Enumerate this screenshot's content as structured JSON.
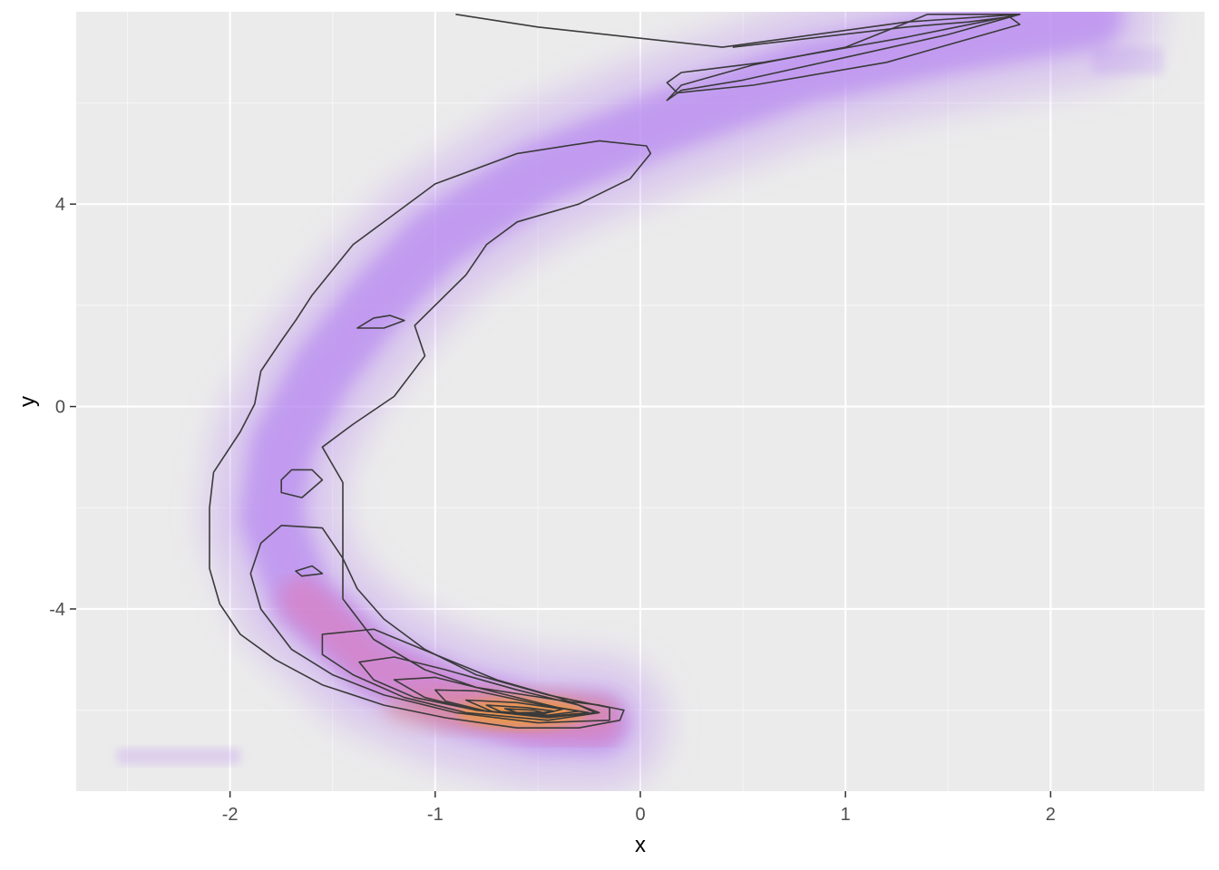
{
  "chart_data": {
    "type": "heatmap",
    "subtype": "2d-density-raster-with-contours",
    "title": "",
    "xlabel": "x",
    "ylabel": "y",
    "xlim": [
      -2.75,
      2.75
    ],
    "ylim": [
      -7.6,
      7.8
    ],
    "x_ticks": [
      -2,
      -1,
      0,
      1,
      2
    ],
    "x_tick_labels": [
      "-2",
      "-1",
      "0",
      "1",
      "2"
    ],
    "y_ticks": [
      -4,
      0,
      4
    ],
    "y_tick_labels": [
      "-4",
      "0",
      "4"
    ],
    "grid": true,
    "legend": "none",
    "colors": {
      "panel_background": "#EBEBEB",
      "grid_major": "#FFFFFF",
      "grid_minor": "#F5F5F5",
      "density_low": "#B98CF0",
      "density_mid": "#D87FC0",
      "density_high": "#F0A020",
      "contour": "#3A3A3A"
    },
    "density_ridge": {
      "description_units": "data",
      "centerline": [
        {
          "x": 2.2,
          "y": 7.7
        },
        {
          "x": 1.5,
          "y": 7.2
        },
        {
          "x": 0.8,
          "y": 6.6
        },
        {
          "x": 0.1,
          "y": 5.6
        },
        {
          "x": -0.5,
          "y": 4.6
        },
        {
          "x": -1.0,
          "y": 3.3
        },
        {
          "x": -1.3,
          "y": 2.0
        },
        {
          "x": -1.55,
          "y": 0.7
        },
        {
          "x": -1.75,
          "y": -0.8
        },
        {
          "x": -1.8,
          "y": -2.2
        },
        {
          "x": -1.65,
          "y": -3.8
        },
        {
          "x": -1.3,
          "y": -5.1
        },
        {
          "x": -0.9,
          "y": -5.8
        },
        {
          "x": -0.5,
          "y": -6.2
        },
        {
          "x": -0.2,
          "y": -6.25
        }
      ],
      "peak": {
        "x": -0.58,
        "y": -6.05
      }
    },
    "contours": [
      {
        "level": 1,
        "points": [
          [
            -0.9,
            7.75
          ],
          [
            -0.5,
            7.5
          ],
          [
            0.4,
            7.1
          ],
          [
            1.3,
            7.6
          ],
          [
            1.85,
            7.75
          ],
          [
            1.3,
            7.3
          ],
          [
            0.6,
            6.8
          ],
          [
            0.2,
            6.6
          ],
          [
            0.13,
            6.4
          ],
          [
            0.18,
            6.2
          ],
          [
            0.55,
            6.35
          ],
          [
            1.2,
            6.8
          ],
          [
            1.85,
            7.55
          ],
          [
            1.8,
            7.7
          ],
          [
            1.6,
            7.6
          ],
          [
            1.3,
            7.5
          ],
          [
            0.45,
            7.1
          ]
        ],
        "closed": false
      },
      {
        "level": 1,
        "points": [
          [
            0.13,
            6.05
          ],
          [
            0.2,
            6.25
          ],
          [
            0.5,
            6.45
          ],
          [
            1.0,
            6.9
          ],
          [
            1.5,
            7.35
          ],
          [
            1.85,
            7.75
          ],
          [
            1.4,
            7.75
          ],
          [
            1.0,
            7.1
          ],
          [
            0.55,
            6.75
          ],
          [
            0.2,
            6.35
          ]
        ],
        "closed": true
      },
      {
        "level": 1,
        "points": [
          [
            0.03,
            5.15
          ],
          [
            -0.2,
            5.25
          ],
          [
            -0.6,
            5.0
          ],
          [
            -1.0,
            4.4
          ],
          [
            -1.2,
            3.8
          ],
          [
            -1.4,
            3.2
          ],
          [
            -1.5,
            2.7
          ],
          [
            -1.6,
            2.2
          ],
          [
            -1.68,
            1.7
          ],
          [
            -1.75,
            1.3
          ],
          [
            -1.85,
            0.7
          ],
          [
            -1.88,
            0.05
          ],
          [
            -1.95,
            -0.5
          ],
          [
            -2.08,
            -1.3
          ],
          [
            -2.1,
            -2.0
          ],
          [
            -2.1,
            -3.2
          ],
          [
            -2.05,
            -3.9
          ],
          [
            -1.95,
            -4.5
          ],
          [
            -1.78,
            -5.0
          ],
          [
            -1.55,
            -5.5
          ],
          [
            -1.25,
            -5.9
          ],
          [
            -0.95,
            -6.15
          ],
          [
            -0.6,
            -6.35
          ],
          [
            -0.3,
            -6.35
          ],
          [
            -0.1,
            -6.2
          ],
          [
            -0.08,
            -6.0
          ],
          [
            -0.2,
            -5.9
          ],
          [
            -0.4,
            -5.8
          ],
          [
            -0.8,
            -5.55
          ],
          [
            -1.05,
            -5.2
          ],
          [
            -1.3,
            -4.6
          ],
          [
            -1.45,
            -3.8
          ],
          [
            -1.45,
            -3.0
          ],
          [
            -1.45,
            -2.2
          ],
          [
            -1.45,
            -1.5
          ],
          [
            -1.55,
            -0.8
          ],
          [
            -1.4,
            -0.35
          ],
          [
            -1.2,
            0.2
          ],
          [
            -1.05,
            1.0
          ],
          [
            -1.1,
            1.6
          ],
          [
            -0.95,
            2.2
          ],
          [
            -0.85,
            2.6
          ],
          [
            -0.75,
            3.2
          ],
          [
            -0.6,
            3.65
          ],
          [
            -0.3,
            4.0
          ],
          [
            -0.05,
            4.5
          ],
          [
            0.05,
            5.0
          ]
        ],
        "closed": true
      },
      {
        "level": 2,
        "points": [
          [
            -1.38,
            1.55
          ],
          [
            -1.3,
            1.75
          ],
          [
            -1.22,
            1.8
          ],
          [
            -1.15,
            1.7
          ],
          [
            -1.25,
            1.55
          ]
        ],
        "closed": true
      },
      {
        "level": 2,
        "points": [
          [
            -1.75,
            -1.45
          ],
          [
            -1.7,
            -1.25
          ],
          [
            -1.6,
            -1.25
          ],
          [
            -1.55,
            -1.45
          ],
          [
            -1.65,
            -1.8
          ],
          [
            -1.75,
            -1.7
          ]
        ],
        "closed": true
      },
      {
        "level": 2,
        "points": [
          [
            -1.85,
            -2.7
          ],
          [
            -1.75,
            -2.35
          ],
          [
            -1.55,
            -2.4
          ],
          [
            -1.45,
            -3.0
          ],
          [
            -1.38,
            -3.6
          ],
          [
            -1.25,
            -4.2
          ],
          [
            -1.05,
            -4.8
          ],
          [
            -0.8,
            -5.3
          ],
          [
            -0.45,
            -5.7
          ],
          [
            -0.15,
            -5.95
          ],
          [
            -0.15,
            -6.2
          ],
          [
            -0.5,
            -6.25
          ],
          [
            -0.9,
            -6.05
          ],
          [
            -1.25,
            -5.7
          ],
          [
            -1.5,
            -5.3
          ],
          [
            -1.7,
            -4.8
          ],
          [
            -1.85,
            -4.0
          ],
          [
            -1.9,
            -3.3
          ]
        ],
        "closed": true
      },
      {
        "level": 3,
        "points": [
          [
            -1.68,
            -3.25
          ],
          [
            -1.6,
            -3.15
          ],
          [
            -1.55,
            -3.3
          ],
          [
            -1.65,
            -3.35
          ]
        ],
        "closed": true
      },
      {
        "level": 3,
        "points": [
          [
            -1.55,
            -4.5
          ],
          [
            -1.3,
            -4.4
          ],
          [
            -1.0,
            -4.9
          ],
          [
            -0.7,
            -5.4
          ],
          [
            -0.4,
            -5.75
          ],
          [
            -0.2,
            -6.05
          ],
          [
            -0.45,
            -6.2
          ],
          [
            -0.85,
            -6.05
          ],
          [
            -1.15,
            -5.75
          ],
          [
            -1.4,
            -5.3
          ],
          [
            -1.55,
            -4.9
          ]
        ],
        "closed": true
      },
      {
        "level": 4,
        "points": [
          [
            -1.37,
            -5.05
          ],
          [
            -1.2,
            -4.95
          ],
          [
            -0.95,
            -5.2
          ],
          [
            -0.6,
            -5.6
          ],
          [
            -0.3,
            -5.9
          ],
          [
            -0.22,
            -6.05
          ],
          [
            -0.45,
            -6.15
          ],
          [
            -0.8,
            -6.0
          ],
          [
            -1.1,
            -5.75
          ],
          [
            -1.3,
            -5.4
          ]
        ],
        "closed": true
      },
      {
        "level": 5,
        "points": [
          [
            -1.2,
            -5.4
          ],
          [
            -1.0,
            -5.35
          ],
          [
            -0.7,
            -5.65
          ],
          [
            -0.4,
            -5.95
          ],
          [
            -0.25,
            -6.05
          ],
          [
            -0.45,
            -6.12
          ],
          [
            -0.8,
            -6.0
          ],
          [
            -1.05,
            -5.75
          ]
        ],
        "closed": true
      },
      {
        "level": 6,
        "points": [
          [
            -1.0,
            -5.6
          ],
          [
            -0.8,
            -5.62
          ],
          [
            -0.5,
            -5.88
          ],
          [
            -0.3,
            -6.02
          ],
          [
            -0.45,
            -6.1
          ],
          [
            -0.75,
            -6.02
          ],
          [
            -0.95,
            -5.82
          ]
        ],
        "closed": true
      },
      {
        "level": 7,
        "points": [
          [
            -0.85,
            -5.8
          ],
          [
            -0.6,
            -5.85
          ],
          [
            -0.38,
            -5.98
          ],
          [
            -0.48,
            -6.08
          ],
          [
            -0.72,
            -6.03
          ]
        ],
        "closed": true
      },
      {
        "level": 8,
        "points": [
          [
            -0.75,
            -5.9
          ],
          [
            -0.55,
            -5.95
          ],
          [
            -0.42,
            -6.02
          ],
          [
            -0.52,
            -6.07
          ],
          [
            -0.68,
            -6.03
          ]
        ],
        "closed": true
      },
      {
        "level": 9,
        "points": [
          [
            -0.66,
            -5.97
          ],
          [
            -0.52,
            -6.0
          ],
          [
            -0.48,
            -6.04
          ],
          [
            -0.6,
            -6.05
          ]
        ],
        "closed": true
      }
    ]
  }
}
